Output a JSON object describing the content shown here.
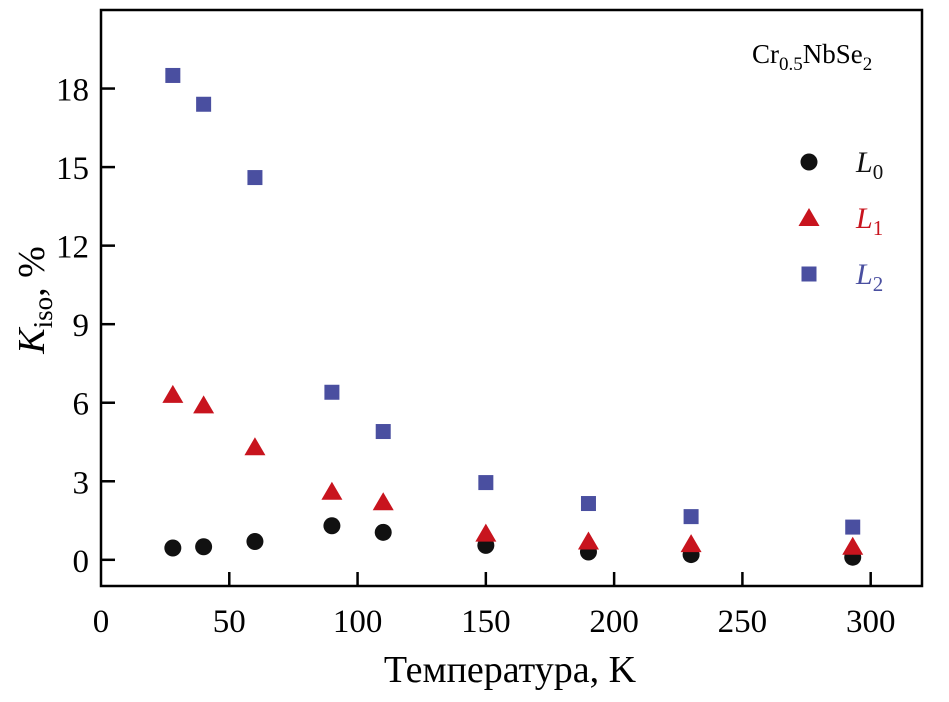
{
  "chart_data": {
    "type": "scatter",
    "title": "",
    "annotation": {
      "main": "Cr",
      "sub1": "0.5",
      "mid": "NbSe",
      "sub2": "2"
    },
    "xlabel": "Температура, K",
    "ylabel": {
      "main": "K",
      "sub": "iso",
      "rest": ", %"
    },
    "xlim": [
      0,
      320
    ],
    "ylim": [
      -1,
      21
    ],
    "xticks": [
      0,
      50,
      100,
      150,
      200,
      250,
      300
    ],
    "yticks": [
      0,
      3,
      6,
      9,
      12,
      15,
      18
    ],
    "legend_position": "right",
    "x": [
      28,
      40,
      60,
      90,
      110,
      150,
      190,
      230,
      293
    ],
    "series": [
      {
        "name": "L",
        "sub": "0",
        "marker": "circle",
        "color": "#111111",
        "values": [
          0.45,
          0.5,
          0.7,
          1.3,
          1.05,
          0.55,
          0.3,
          0.2,
          0.1
        ]
      },
      {
        "name": "L",
        "sub": "1",
        "marker": "triangle",
        "color": "#c8141e",
        "values": [
          6.3,
          5.9,
          4.3,
          2.6,
          2.2,
          1.0,
          0.7,
          0.6,
          0.5
        ]
      },
      {
        "name": "L",
        "sub": "2",
        "marker": "square",
        "color": "#4a4fa0",
        "values": [
          18.5,
          17.4,
          14.6,
          6.4,
          4.9,
          2.95,
          2.15,
          1.65,
          1.25
        ]
      }
    ]
  }
}
